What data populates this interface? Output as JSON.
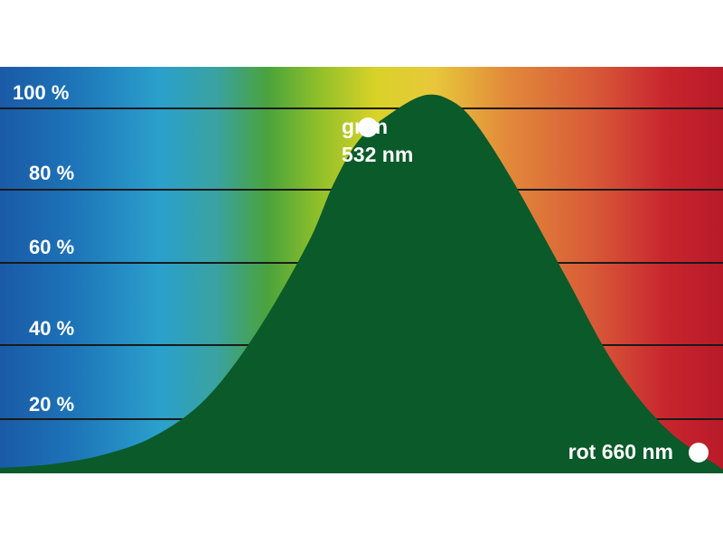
{
  "chart_data": {
    "type": "area",
    "title": "",
    "xlabel": "",
    "ylabel": "",
    "x_unit": "nm",
    "ylim": [
      0,
      100
    ],
    "yticks": [
      20,
      40,
      60,
      80,
      100
    ],
    "ytick_labels": [
      "20 %",
      "40 %",
      "60 %",
      "80 %",
      "100 %"
    ],
    "grid": true,
    "background": "visible spectrum gradient (blue → green → yellow → red)",
    "fill_color": "#0b5a2a",
    "x": [
      380,
      400,
      420,
      440,
      460,
      480,
      500,
      510,
      520,
      532,
      545,
      555,
      565,
      580,
      600,
      620,
      640,
      660
    ],
    "values": [
      0.5,
      1.5,
      4,
      9,
      19,
      37,
      61,
      77,
      89,
      96,
      101,
      100,
      94,
      78,
      53,
      28,
      11,
      1
    ],
    "annotations": [
      {
        "label_line1": "grün",
        "label_line2": "532 nm",
        "x": 532,
        "y": 96
      },
      {
        "label": "rot 660 nm",
        "x": 660,
        "y": 1
      }
    ]
  }
}
